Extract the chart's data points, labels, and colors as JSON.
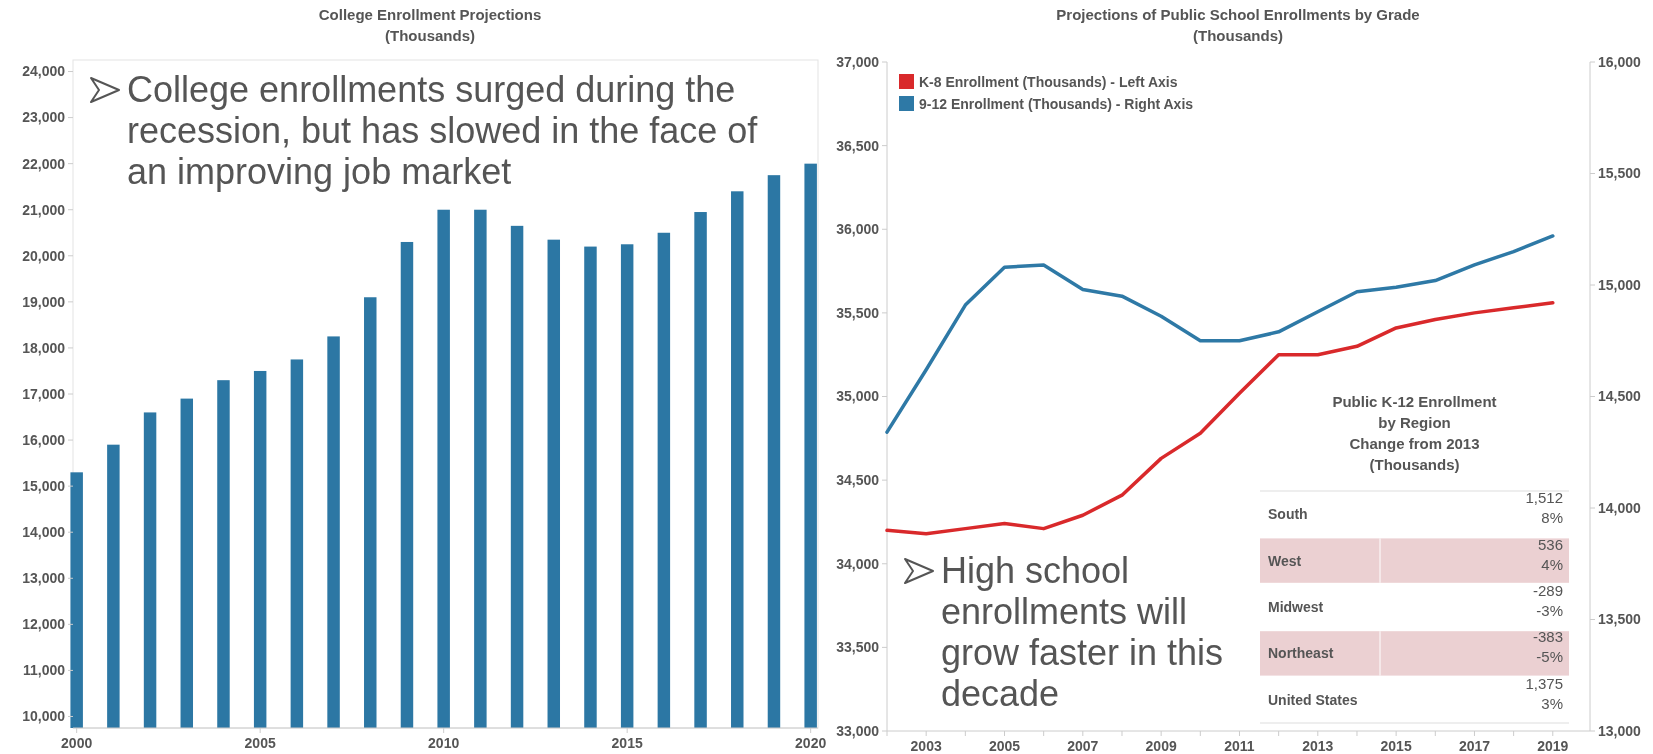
{
  "chart_data": [
    {
      "type": "bar",
      "title": "College Enrollment Projections\n(Thousands)",
      "x": [
        2000,
        2001,
        2002,
        2003,
        2004,
        2005,
        2006,
        2007,
        2008,
        2009,
        2010,
        2011,
        2012,
        2013,
        2014,
        2015,
        2016,
        2017,
        2018,
        2019,
        2020
      ],
      "values": [
        15300,
        15900,
        16600,
        16900,
        17300,
        17500,
        17750,
        18250,
        19100,
        20300,
        21000,
        21000,
        20650,
        20350,
        20200,
        20250,
        20500,
        20950,
        21400,
        21750,
        22000
      ],
      "color": "#2c77a4",
      "xlim": [
        1999.9,
        2020.2
      ],
      "xticks": [
        2000,
        2005,
        2010,
        2015,
        2020
      ],
      "ylim": [
        9750,
        24250
      ],
      "yticks": [
        {
          "value": 10000,
          "label": "10,000"
        },
        {
          "value": 11000,
          "label": "11,000"
        },
        {
          "value": 12000,
          "label": "12,000"
        },
        {
          "value": 13000,
          "label": "13,000"
        },
        {
          "value": 14000,
          "label": "14,000"
        },
        {
          "value": 15000,
          "label": "15,000"
        },
        {
          "value": 16000,
          "label": "16,000"
        },
        {
          "value": 17000,
          "label": "17,000"
        },
        {
          "value": 18000,
          "label": "18,000"
        },
        {
          "value": 19000,
          "label": "19,000"
        },
        {
          "value": 20000,
          "label": "20,000"
        },
        {
          "value": 21000,
          "label": "21,000"
        },
        {
          "value": 22000,
          "label": "22,000"
        },
        {
          "value": 23000,
          "label": "23,000"
        },
        {
          "value": 24000,
          "label": "24,000"
        }
      ],
      "annotations": [
        "College enrollments surged during the recession, but has slowed in the face of an improving job market"
      ]
    },
    {
      "type": "line",
      "title": "Projections of Public School Enrollments by Grade\n(Thousands)",
      "x": [
        2002,
        2003,
        2004,
        2005,
        2006,
        2007,
        2008,
        2009,
        2010,
        2011,
        2012,
        2013,
        2014,
        2015,
        2016,
        2017,
        2018,
        2019
      ],
      "series": [
        {
          "name": "K-8 Enrollment (Thousands) - Left Axis",
          "color": "#d9292b",
          "values": [
            34200,
            34180,
            34210,
            34240,
            34210,
            34290,
            34410,
            34630,
            34780,
            35020,
            35250,
            35250,
            35300,
            35410,
            35460,
            35500,
            35530,
            35560
          ]
        },
        {
          "name": "9-12 Enrollment (Thousands) - Right Axis",
          "color": "#2e79a6",
          "axis": "y2",
          "values": [
            14340,
            14620,
            14910,
            15080,
            15090,
            14980,
            14950,
            14860,
            14750,
            14750,
            14790,
            14880,
            14970,
            14990,
            15020,
            15090,
            15150,
            15220
          ]
        }
      ],
      "xlim": [
        2002,
        2019.95
      ],
      "xticks": [
        {
          "value": 2002,
          "label": null
        },
        2003,
        {
          "value": 2004,
          "label": null
        },
        2005,
        {
          "value": 2006,
          "label": null
        },
        2007,
        {
          "value": 2008,
          "label": null
        },
        2009,
        {
          "value": 2010,
          "label": null
        },
        2011,
        {
          "value": 2012,
          "label": null
        },
        2013,
        {
          "value": 2014,
          "label": null
        },
        2015,
        {
          "value": 2016,
          "label": null
        },
        2017,
        {
          "value": 2018,
          "label": null
        },
        2019
      ],
      "ylim": [
        33000,
        37000
      ],
      "yticks": [
        {
          "value": 33000,
          "label": "33,000"
        },
        {
          "value": 33500,
          "label": "33,500"
        },
        {
          "value": 34000,
          "label": "34,000"
        },
        {
          "value": 34500,
          "label": "34,500"
        },
        {
          "value": 35000,
          "label": "35,000"
        },
        {
          "value": 35500,
          "label": "35,500"
        },
        {
          "value": 36000,
          "label": "36,000"
        },
        {
          "value": 36500,
          "label": "36,500"
        },
        {
          "value": 37000,
          "label": "37,000"
        }
      ],
      "y2lim": [
        13000,
        16000
      ],
      "y2ticks": [
        {
          "value": 13000,
          "label": "13,000"
        },
        {
          "value": 13500,
          "label": "13,500"
        },
        {
          "value": 14000,
          "label": "14,000"
        },
        {
          "value": 14500,
          "label": "14,500"
        },
        {
          "value": 15000,
          "label": "15,000"
        },
        {
          "value": 15500,
          "label": "15,500"
        },
        {
          "value": 16000,
          "label": "16,000"
        }
      ],
      "legend": "top left",
      "annotations": [
        "High school enrollments will grow faster in this decade"
      ]
    },
    {
      "type": "other",
      "title": "Public K-12 Enrollment\nby Region\nChange from 2013\n(Thousands)",
      "categories": [
        "South",
        "West",
        "Midwest",
        "Northeast",
        "United States"
      ],
      "value_labels": [
        "1,512\n8%",
        "536\n4%",
        "-289\n-3%",
        "-383\n-5%",
        "1,375\n3%"
      ],
      "colors": [
        "#ffffff",
        "#ebd0d2",
        "#ffffff",
        "#ebd0d2",
        "#ffffff"
      ]
    }
  ]
}
